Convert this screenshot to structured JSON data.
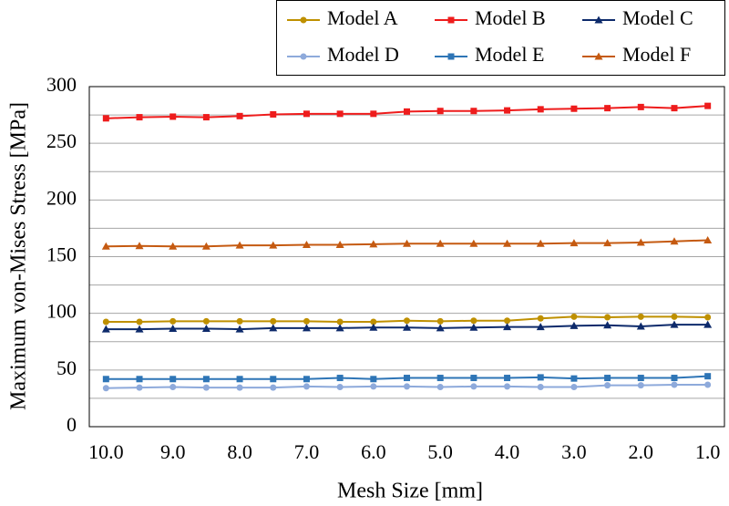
{
  "chart_data": {
    "type": "line",
    "x_label": "Mesh Size [mm]",
    "y_label": "Maximum von-Mises Stress [MPa]",
    "categories": [
      "10.0",
      null,
      "9.0",
      null,
      "8.0",
      null,
      "7.0",
      null,
      "6.0",
      null,
      "5.0",
      null,
      "4.0",
      null,
      "3.0",
      null,
      "2.0",
      null,
      "1.0"
    ],
    "ylim": [
      0,
      300
    ],
    "yticks": [
      0,
      50,
      100,
      150,
      200,
      250,
      300
    ],
    "ygrid": [
      0,
      25,
      50,
      75,
      100,
      125,
      150,
      175,
      200,
      225,
      250,
      275,
      300
    ],
    "grid": true,
    "legend": "top-right",
    "series": [
      {
        "name": "Model A",
        "color": "#bf9000",
        "marker": "circle",
        "values": [
          92.5,
          92.5,
          93,
          93,
          93,
          93,
          93,
          92.5,
          92.5,
          93.5,
          93,
          93.5,
          93.5,
          95.5,
          97,
          96.5,
          97,
          97,
          96.5
        ]
      },
      {
        "name": "Model B",
        "color": "#ee1c1c",
        "marker": "square",
        "values": [
          272,
          273,
          273.5,
          273,
          274,
          275.5,
          276,
          276,
          276,
          278,
          278.5,
          278.5,
          279,
          280,
          280.5,
          281,
          282,
          281,
          283
        ]
      },
      {
        "name": "Model C",
        "color": "#0d2a6b",
        "marker": "triangle",
        "values": [
          86,
          86,
          86.5,
          86.5,
          86,
          87,
          87,
          87,
          87.5,
          87.5,
          87,
          87.5,
          88,
          88,
          89,
          89.5,
          88.5,
          90,
          90
        ]
      },
      {
        "name": "Model D",
        "color": "#8eaadb",
        "marker": "circle",
        "values": [
          34,
          34.5,
          35,
          34.5,
          34.5,
          34.5,
          35.5,
          35,
          35.5,
          35.5,
          35,
          35.5,
          35.5,
          35,
          35,
          36.5,
          36.5,
          37,
          37
        ]
      },
      {
        "name": "Model E",
        "color": "#2e75b6",
        "marker": "square",
        "values": [
          42,
          42,
          42,
          42,
          42,
          42,
          42,
          43,
          42,
          43,
          43,
          43,
          43,
          43.5,
          42.5,
          43,
          43,
          43,
          44.5
        ]
      },
      {
        "name": "Model F",
        "color": "#c55a11",
        "marker": "triangle",
        "values": [
          159,
          159.5,
          159,
          159,
          160,
          160,
          160.5,
          160.5,
          161,
          161.5,
          161.5,
          161.5,
          161.5,
          161.5,
          162,
          162,
          162.5,
          163.5,
          164.5
        ]
      }
    ]
  }
}
